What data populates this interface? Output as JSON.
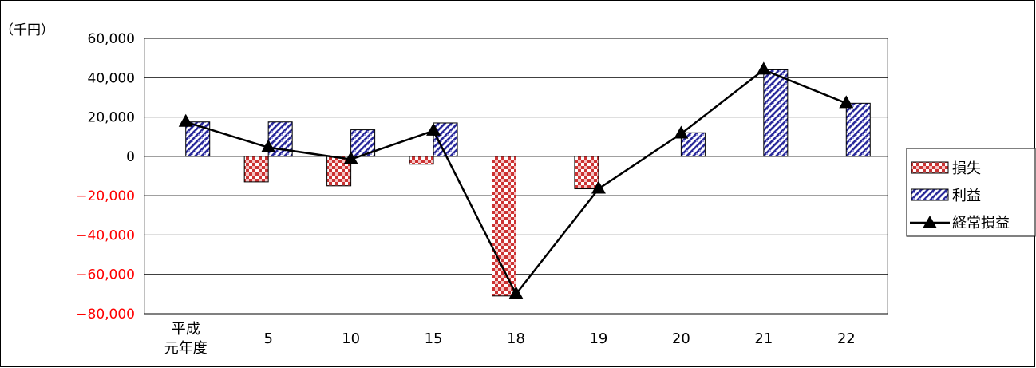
{
  "chart_data": {
    "type": "bar",
    "unit_label": "（千円）",
    "categories": [
      [
        "平成",
        "元年度"
      ],
      [
        "5"
      ],
      [
        "10"
      ],
      [
        "15"
      ],
      [
        "18"
      ],
      [
        "19"
      ],
      [
        "20"
      ],
      [
        "21"
      ],
      [
        "22"
      ]
    ],
    "ylim": [
      -80000,
      60000
    ],
    "y_ticks": [
      "60,000",
      "40,000",
      "20,000",
      "0",
      "−20,000",
      "−40,000",
      "−60,000",
      "−80,000"
    ],
    "y_tick_values": [
      60000,
      40000,
      20000,
      0,
      -20000,
      -40000,
      -60000,
      -80000
    ],
    "negative_tick_color": "#ff0000",
    "grid": true,
    "legend_position": "right",
    "series": [
      {
        "name": "損失",
        "kind": "bar",
        "color": "#cc3333",
        "values": [
          0,
          -13000,
          -15000,
          -4000,
          -71000,
          -16500,
          0,
          0,
          0
        ]
      },
      {
        "name": "利益",
        "kind": "bar",
        "color": "#3333aa",
        "values": [
          17500,
          17500,
          13500,
          17000,
          0,
          0,
          12000,
          44000,
          27000
        ]
      },
      {
        "name": "経常損益",
        "kind": "line",
        "color": "#000000",
        "values": [
          17500,
          4500,
          -1500,
          13000,
          -70000,
          -16500,
          11500,
          44000,
          27000
        ]
      }
    ]
  }
}
